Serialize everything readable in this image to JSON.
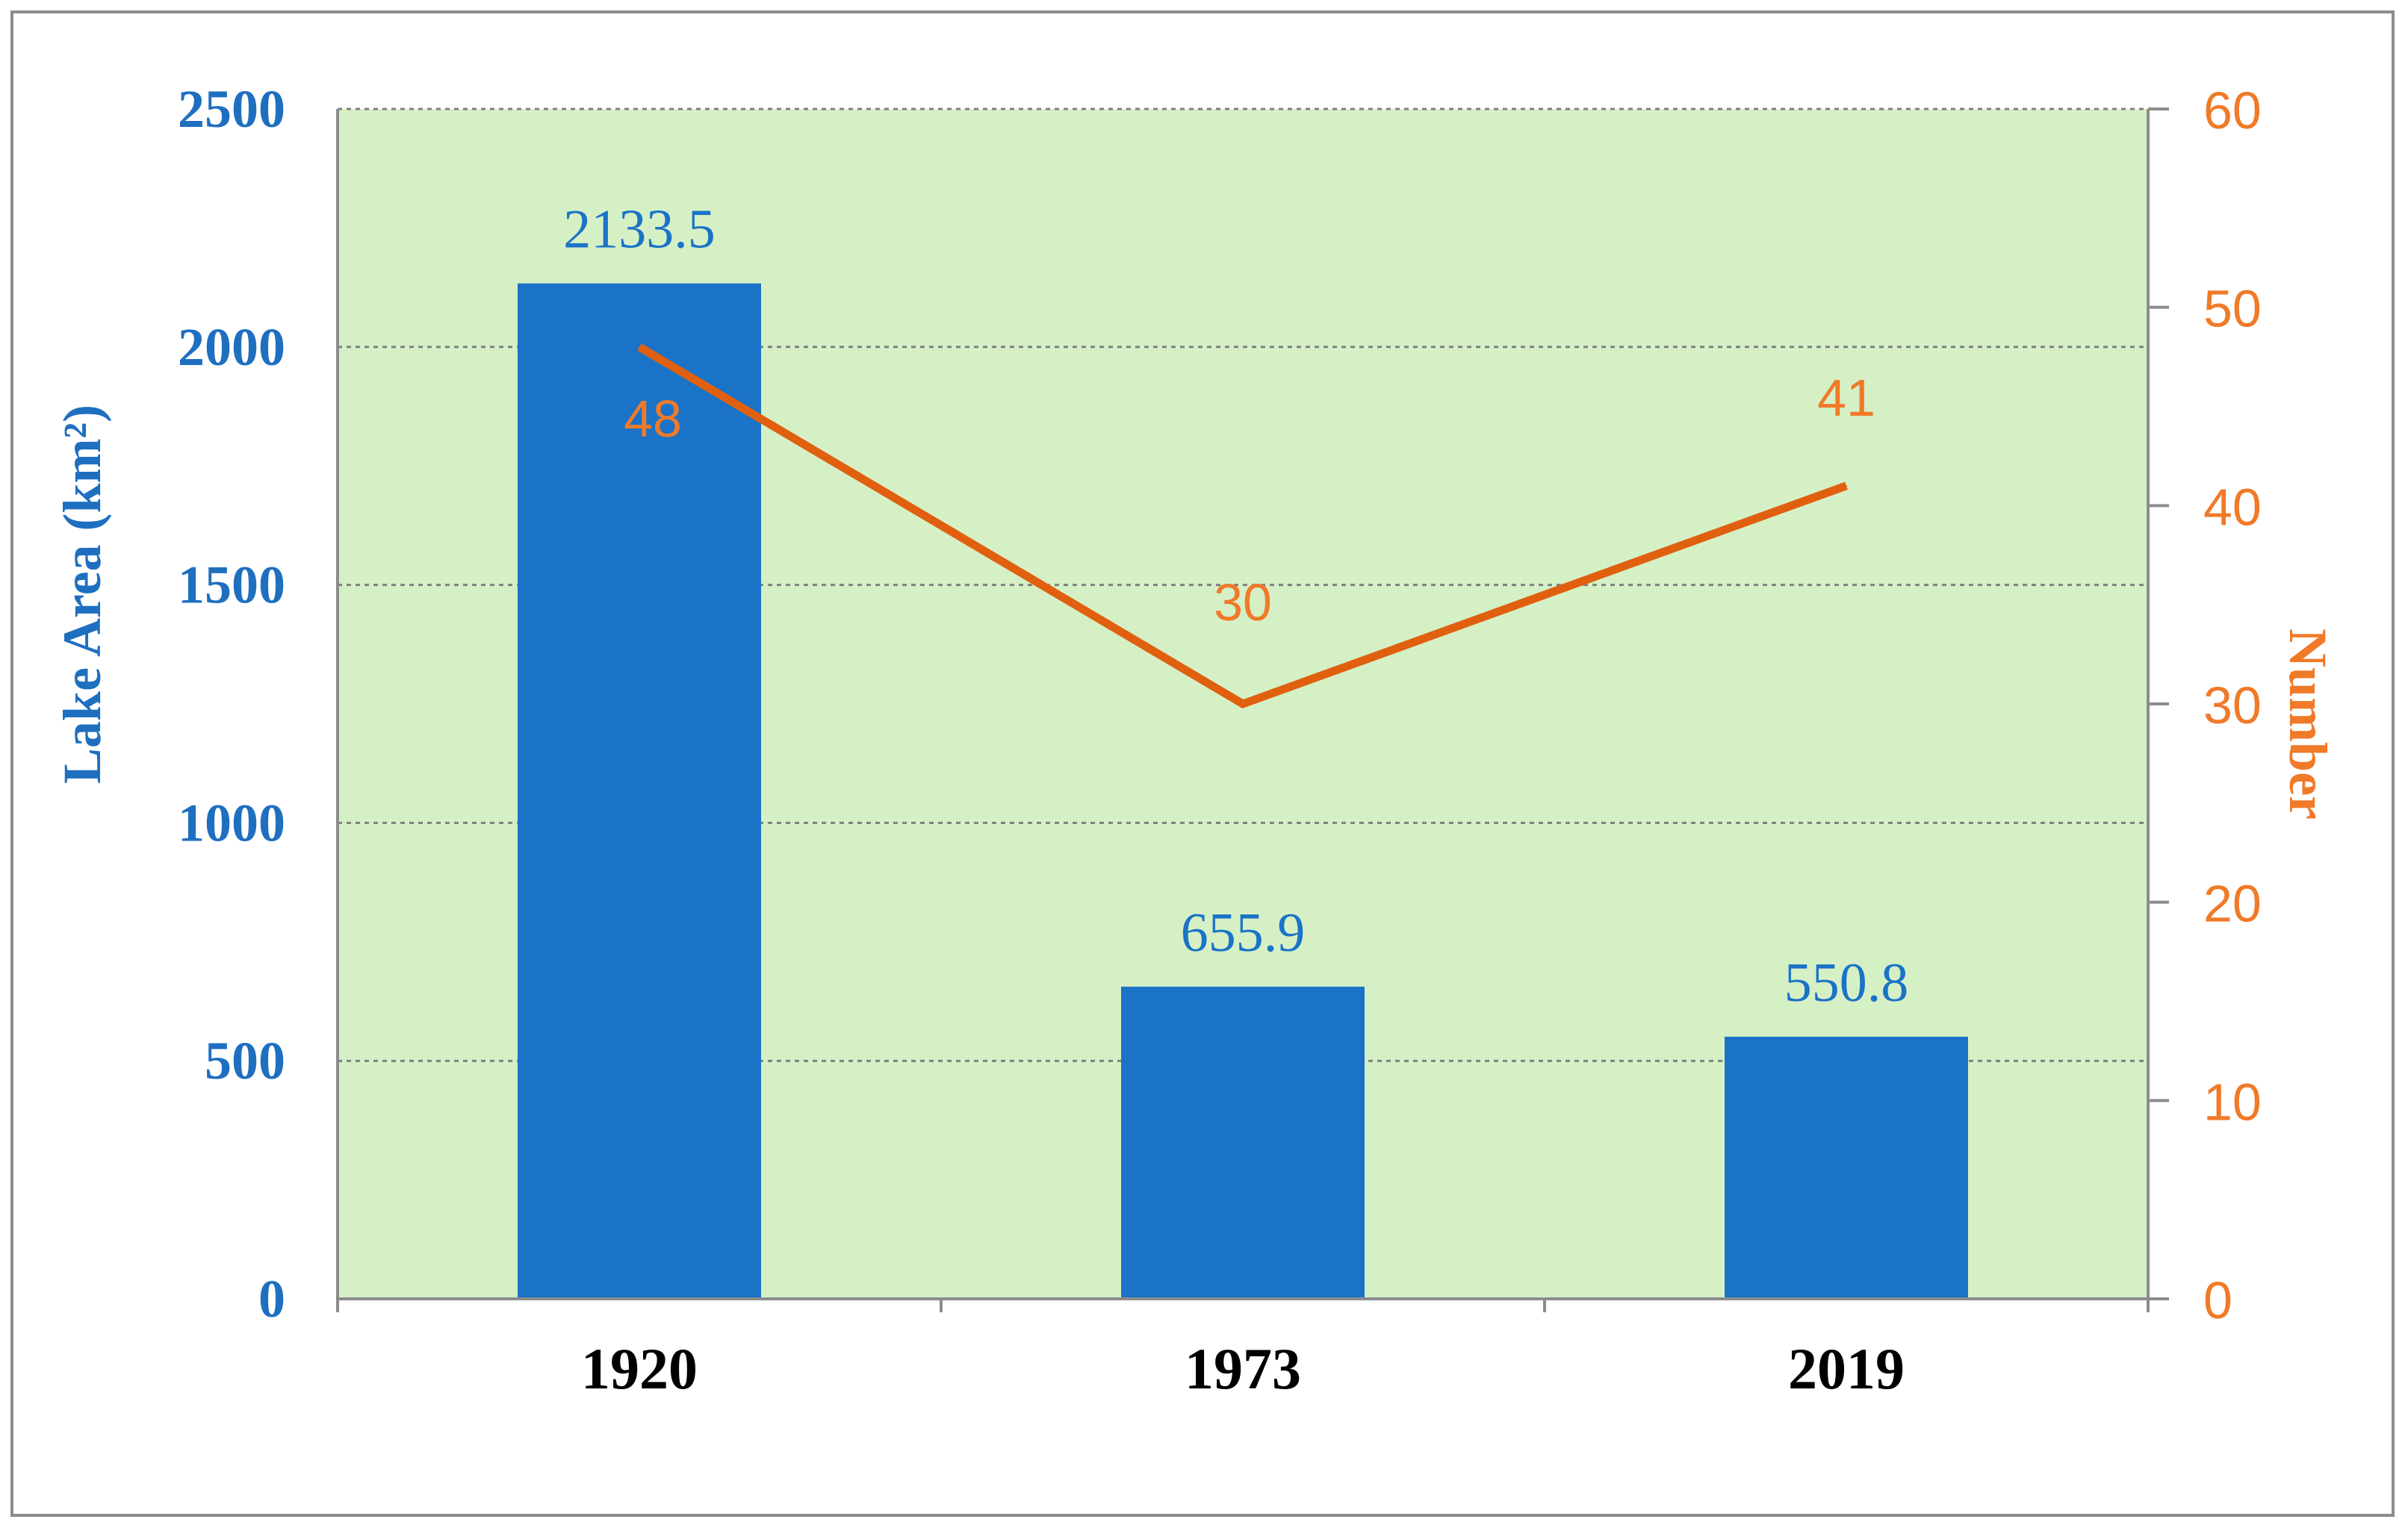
{
  "chart_data": {
    "type": "bar",
    "categories": [
      "1920",
      "1973",
      "2019"
    ],
    "series": [
      {
        "values": [
          2133.5,
          655.9,
          550.8
        ],
        "data_labels": [
          "2133.5",
          "655.9",
          "550.8"
        ],
        "axis": "left",
        "type": "bar"
      },
      {
        "values": [
          48,
          30,
          41
        ],
        "data_labels": [
          "48",
          "30",
          "41"
        ],
        "axis": "right",
        "type": "line"
      }
    ],
    "ylabel": "Lake Area (km²)",
    "ylabel_right": "Number",
    "ylim": [
      0,
      2500
    ],
    "ylim_right": [
      0,
      60
    ],
    "yticks": [
      "0",
      "500",
      "1000",
      "1500",
      "2000",
      "2500"
    ],
    "yticks_right": [
      "0",
      "10",
      "20",
      "30",
      "40",
      "50",
      "60"
    ],
    "grid": true,
    "colors": {
      "bar": "#1a73c7",
      "line": "#e0600f",
      "right_axis_text": "#f07a28",
      "plot_background": "#d6f0c6",
      "left_axis_text": "#1f6fc0"
    }
  }
}
